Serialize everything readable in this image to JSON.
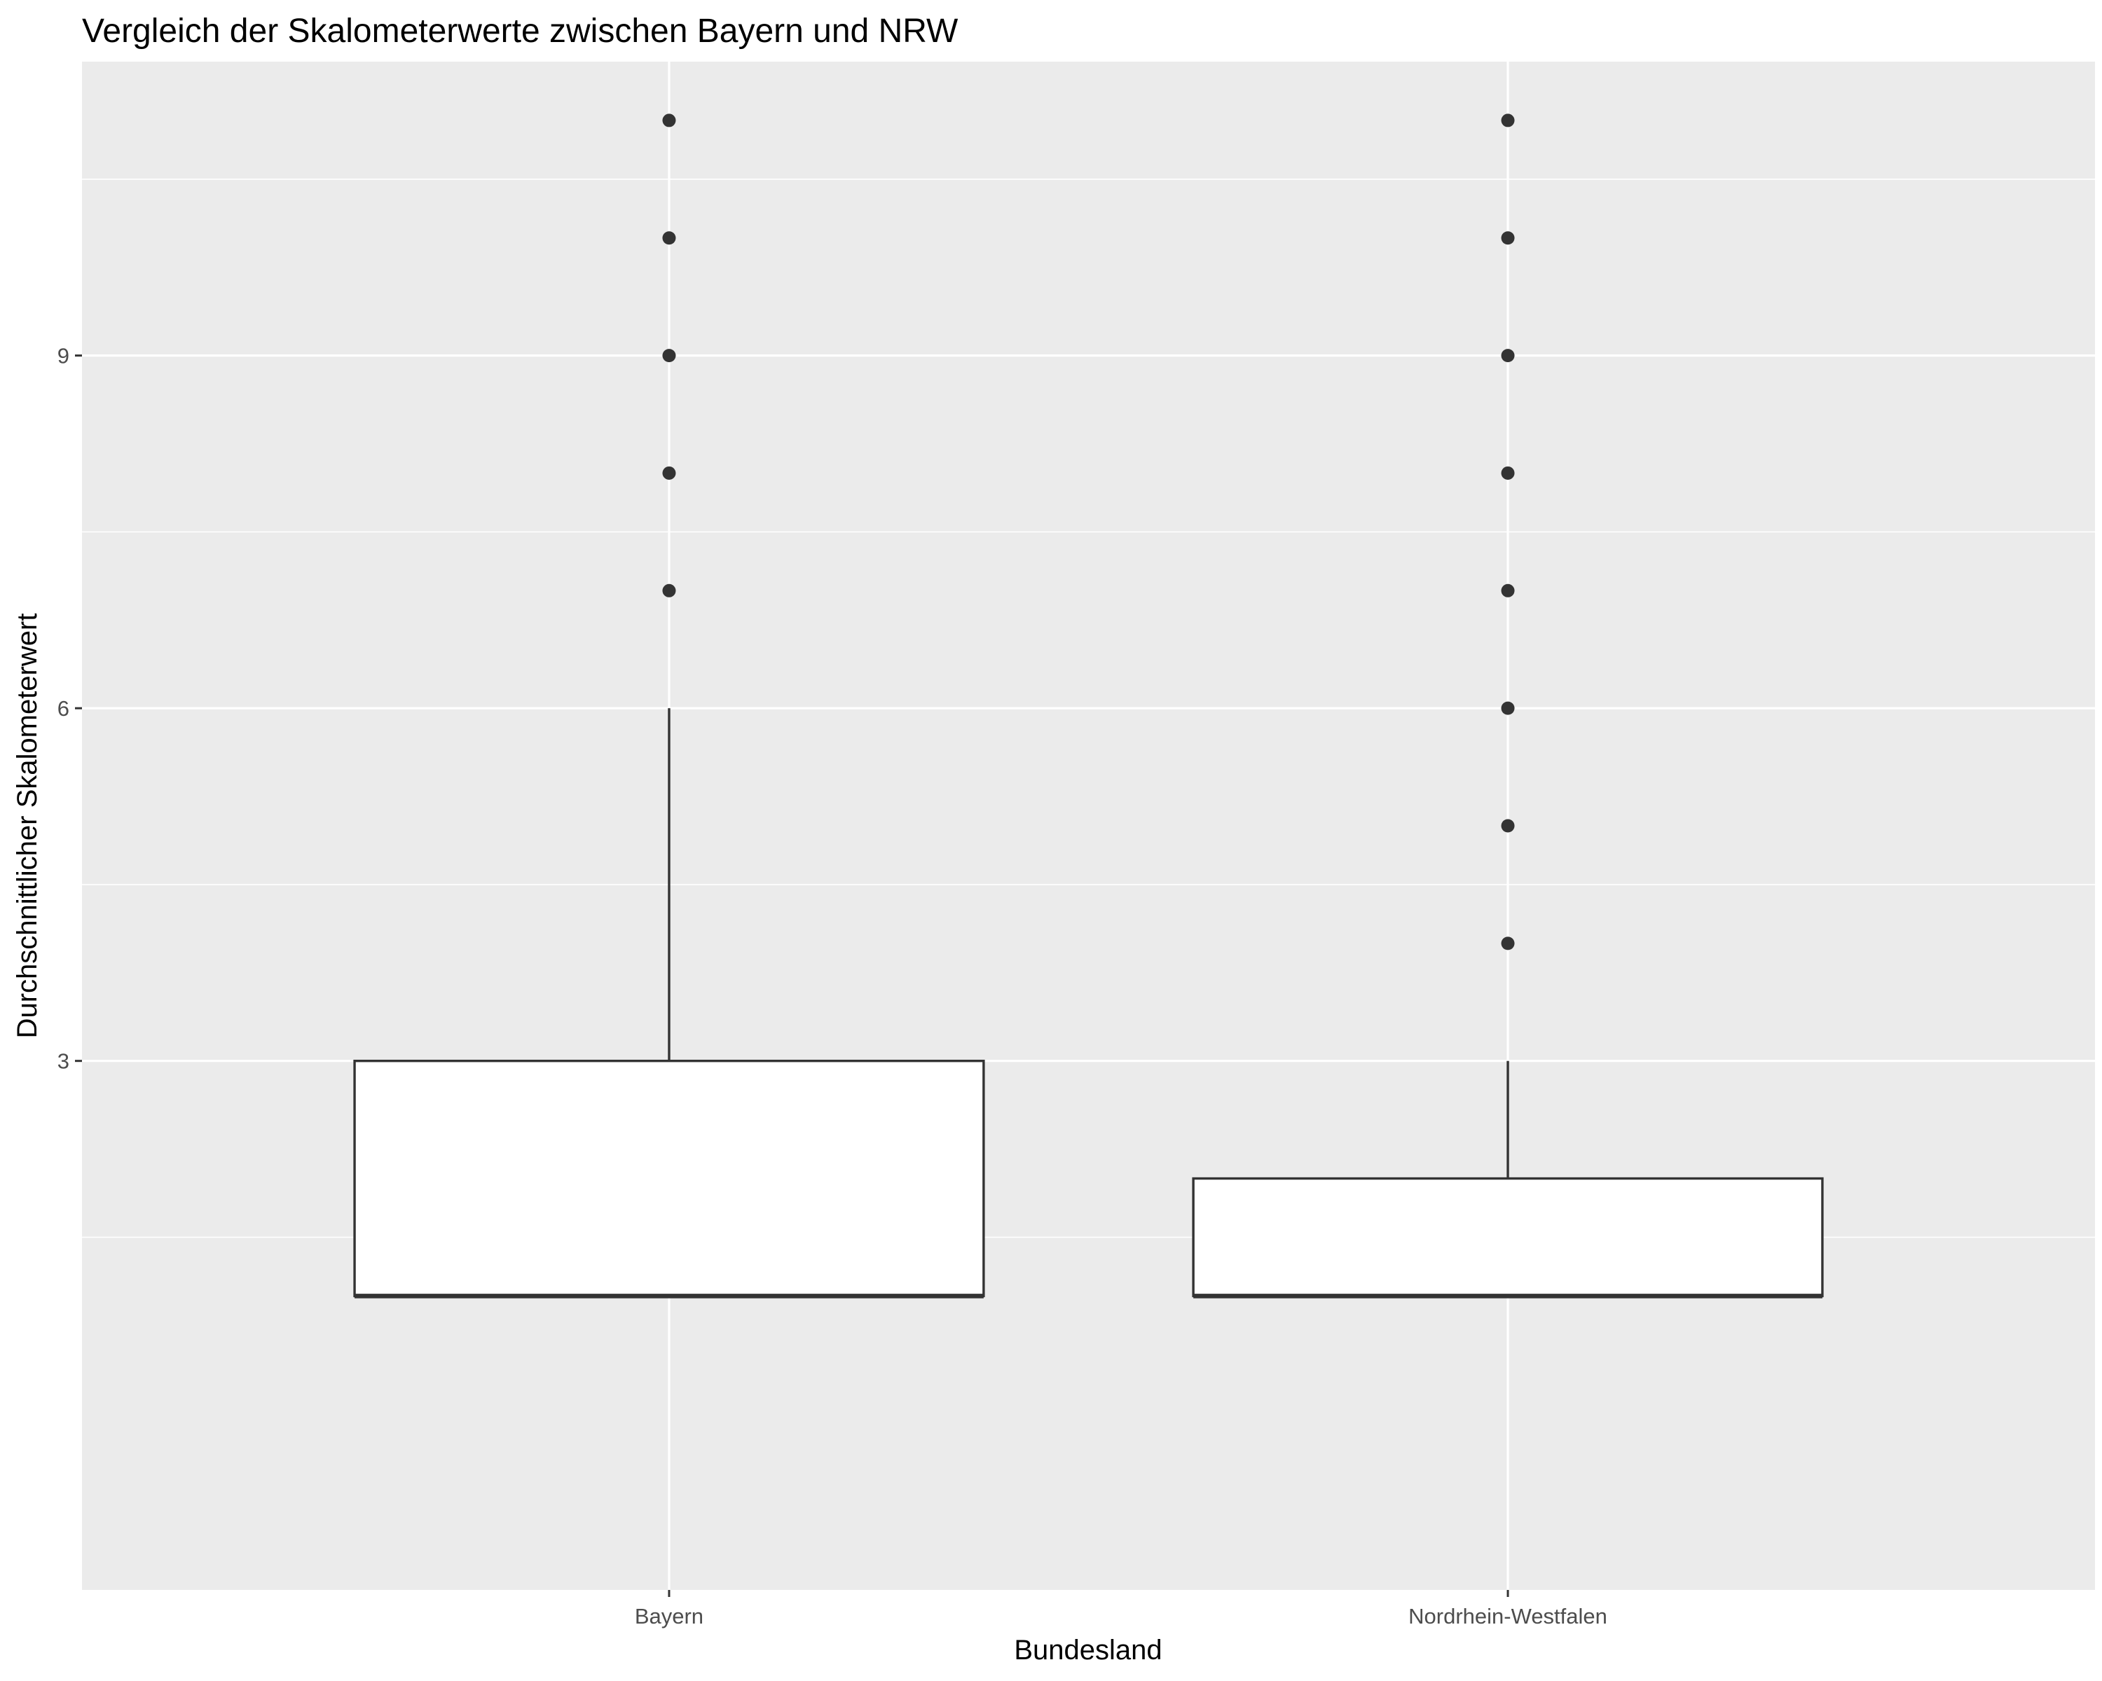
{
  "chart_data": {
    "type": "boxplot",
    "title": "Vergleich der Skalometerwerte zwischen Bayern und NRW",
    "xlabel": "Bundesland",
    "ylabel": "Durchschnittlicher Skalometerwert",
    "ylim": [
      -1.5,
      11.5
    ],
    "yticks": [
      3,
      6,
      9
    ],
    "grid": true,
    "categories": [
      "Bayern",
      "Nordrhein-Westfalen"
    ],
    "boxes": [
      {
        "category": "Bayern",
        "lower_whisker": 1,
        "q1": 1,
        "median": 1,
        "q3": 3,
        "upper_whisker": 6,
        "outliers": [
          7,
          8,
          9,
          10,
          11
        ]
      },
      {
        "category": "Nordrhein-Westfalen",
        "lower_whisker": 1,
        "q1": 1,
        "median": 1,
        "q3": 2,
        "upper_whisker": 3,
        "outliers": [
          4,
          5,
          6,
          7,
          8,
          9,
          10,
          11
        ]
      }
    ]
  },
  "colors": {
    "panel_background": "#EBEBEB",
    "grid": "#FFFFFF",
    "box_fill": "#FFFFFF",
    "box_line": "#333333",
    "outlier": "#333333",
    "tick_text": "#4D4D4D"
  }
}
